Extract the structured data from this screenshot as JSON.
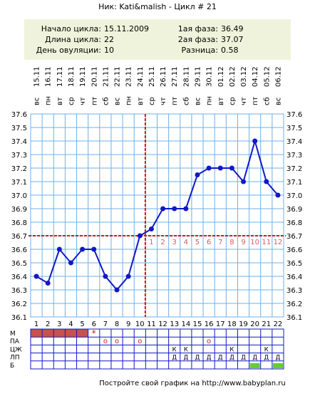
{
  "title": "Ник: Kati&malish - Цикл # 21",
  "info": {
    "left": [
      {
        "label": "Начало цикла",
        "value": "15.11.2009"
      },
      {
        "label": "Длина цикла",
        "value": "22"
      },
      {
        "label": "День овуляции",
        "value": "10"
      }
    ],
    "right": [
      {
        "label": "1ая фаза",
        "value": "36.49"
      },
      {
        "label": "2ая фаза",
        "value": "37.07"
      },
      {
        "label": "Разница",
        "value": "0.58"
      }
    ]
  },
  "footer": "Постройте свой график на http://www.babyplan.ru",
  "colors": {
    "info_bg": "#f0f3db",
    "grid": "#6fb0e8",
    "line": "#1018c8",
    "cover": "#c82020",
    "menses": "#c85050",
    "green": "#66cc33",
    "axis_text": "#000000"
  },
  "chart_data": {
    "type": "line",
    "weekdays": [
      "вс",
      "пн",
      "вт",
      "ср",
      "чт",
      "пт",
      "сб",
      "вс",
      "пн",
      "вт",
      "ср",
      "чт",
      "пт",
      "сб",
      "вс",
      "пн",
      "вт",
      "ср",
      "чт",
      "пт",
      "сб",
      "вс"
    ],
    "dates": [
      "15.11",
      "16.11",
      "17.11",
      "18.11",
      "19.11",
      "20.11",
      "21.11",
      "22.11",
      "23.11",
      "24.11",
      "25.11",
      "26.11",
      "27.11",
      "28.11",
      "29.11",
      "30.11",
      "01.12",
      "02.12",
      "03.12",
      "04.12",
      "05.12",
      "06.12"
    ],
    "x": [
      1,
      2,
      3,
      4,
      5,
      6,
      7,
      8,
      9,
      10,
      11,
      12,
      13,
      14,
      15,
      16,
      17,
      18,
      19,
      20,
      21,
      22
    ],
    "values": [
      36.4,
      36.35,
      36.6,
      36.5,
      36.6,
      36.6,
      36.4,
      36.3,
      36.4,
      36.7,
      36.75,
      36.9,
      36.9,
      36.9,
      37.15,
      37.2,
      37.2,
      37.2,
      37.1,
      37.4,
      37.1,
      37.0
    ],
    "ylim": [
      36.1,
      37.6
    ],
    "yticks": [
      "36.1",
      "36.2",
      "36.3",
      "36.4",
      "36.5",
      "36.6",
      "36.7",
      "36.8",
      "36.9",
      "37.0",
      "37.1",
      "37.2",
      "37.3",
      "37.4",
      "37.5",
      "37.6"
    ],
    "coverline": 36.7,
    "ovulation_day": 10,
    "luteal_labels": [
      "1",
      "2",
      "3",
      "4",
      "5",
      "6",
      "7",
      "8",
      "9",
      "10",
      "11",
      "12"
    ],
    "grid": true
  },
  "table": {
    "row_labels": [
      "М",
      "ПА",
      "ЦЖ",
      "ЛП",
      "Б"
    ],
    "menses_days": [
      1,
      2,
      3,
      4,
      5
    ],
    "star": {
      "day": 6,
      "text": "*"
    },
    "pa_marks": [
      {
        "day": 7,
        "text": "o"
      },
      {
        "day": 8,
        "text": "o"
      },
      {
        "day": 10,
        "text": "o"
      },
      {
        "day": 16,
        "text": "o"
      }
    ],
    "cm_marks": [
      {
        "day": 13,
        "text": "К"
      },
      {
        "day": 14,
        "text": "К"
      },
      {
        "day": 18,
        "text": "К"
      },
      {
        "day": 21,
        "text": "К"
      }
    ],
    "lp_marks": [
      {
        "day": 13,
        "text": "Д"
      },
      {
        "day": 14,
        "text": "Д"
      },
      {
        "day": 15,
        "text": "Д"
      },
      {
        "day": 16,
        "text": "Д"
      },
      {
        "day": 17,
        "text": "Д"
      },
      {
        "day": 18,
        "text": "Д"
      },
      {
        "day": 19,
        "text": "Д"
      },
      {
        "day": 20,
        "text": "Д"
      },
      {
        "day": 21,
        "text": "Д"
      },
      {
        "day": 22,
        "text": "Д"
      }
    ],
    "b_green_days": [
      20,
      22
    ]
  }
}
